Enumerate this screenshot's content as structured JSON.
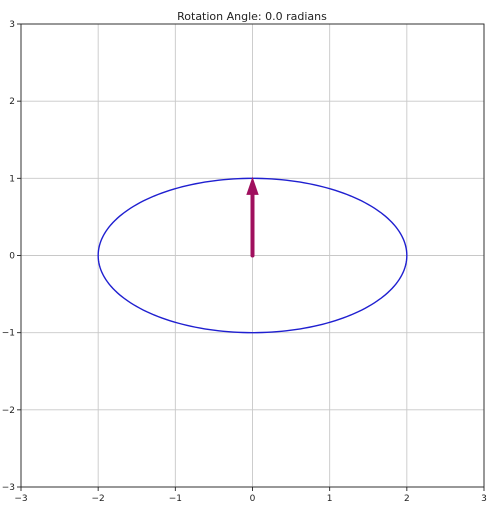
{
  "chart_data": {
    "type": "line",
    "title": "Rotation Angle: 0.0 radians",
    "xlabel": "",
    "ylabel": "",
    "xlim": [
      -3,
      3
    ],
    "ylim": [
      -3,
      3
    ],
    "xticks": [
      -3,
      -2,
      -1,
      0,
      1,
      2,
      3
    ],
    "yticks": [
      -3,
      -2,
      -1,
      0,
      1,
      2,
      3
    ],
    "xtick_labels": [
      "−3",
      "−2",
      "−1",
      "0",
      "1",
      "2",
      "3"
    ],
    "ytick_labels": [
      "−3",
      "−2",
      "−1",
      "0",
      "1",
      "2",
      "3"
    ],
    "grid": true,
    "ellipse": {
      "center": [
        0,
        0
      ],
      "semi_major_x": 2,
      "semi_minor_y": 1,
      "rotation_radians": 0.0,
      "color": "#1f1fd0"
    },
    "arrow": {
      "start": [
        0,
        0
      ],
      "end": [
        0,
        1
      ],
      "color": "#a0105e"
    }
  }
}
